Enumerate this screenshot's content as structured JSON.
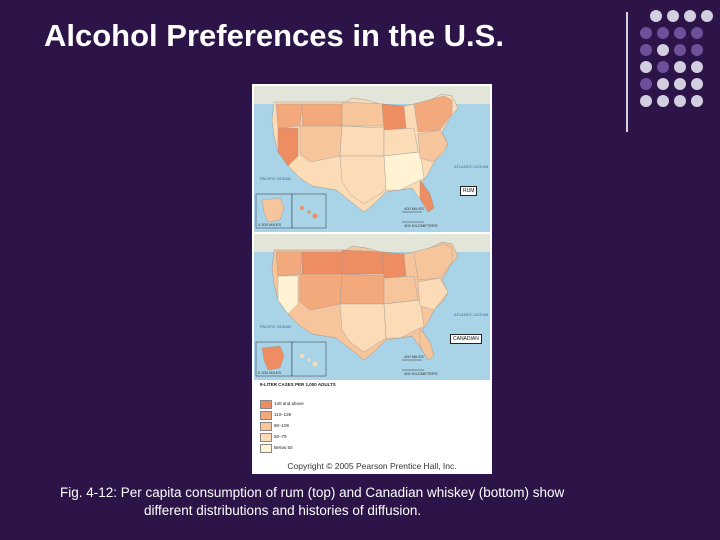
{
  "slide": {
    "title": "Alcohol Preferences in the U.S.",
    "caption_line1": "Fig. 4-12: Per capita consumption of rum (top) and Canadian whiskey (bottom) show",
    "caption_line2": "different distributions and histories of diffusion."
  },
  "colors": {
    "background": "#2c1449",
    "dot_light": "#d2cfe0",
    "dot_dark": "#6c509a",
    "water": "#a9d3e6",
    "canada_land": "#e2e5d8"
  },
  "figure": {
    "copyright": "Copyright © 2005 Pearson Prentice Hall, Inc.",
    "maps": [
      {
        "label": "RUM",
        "pacific": "PACIFIC OCEAN",
        "atlantic": "ATLANTIC OCEAN",
        "scale_miles": "400 MILES",
        "scale_km": "400 KILOMETERS",
        "inset_scale": "0   200 MILES"
      },
      {
        "label": "CANADIAN",
        "pacific": "PACIFIC OCEAN",
        "atlantic": "ATLANTIC OCEAN",
        "scale_miles": "400 MILES",
        "scale_km": "400 KILOMETERS",
        "inset_scale": "0   200 MILES"
      }
    ],
    "legend": {
      "title": "9-LITER CASES PER 1,000 ADULTS",
      "items": [
        {
          "label": "140 and above",
          "color": "#ee8c62"
        },
        {
          "label": "110–139",
          "color": "#f3a97c"
        },
        {
          "label": "80–109",
          "color": "#f7c59c"
        },
        {
          "label": "50–79",
          "color": "#fbdcb7"
        },
        {
          "label": "Below 50",
          "color": "#fff3d4"
        }
      ]
    }
  }
}
